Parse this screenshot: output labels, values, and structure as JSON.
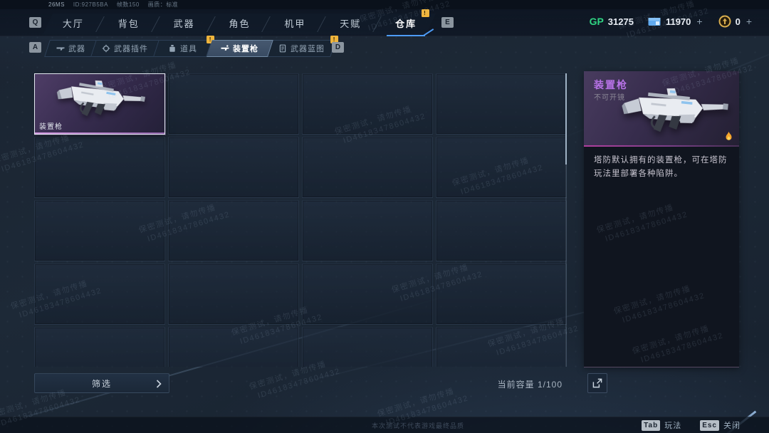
{
  "status_bar": {
    "ping": "26MS",
    "session_id": "ID:927B5BA",
    "fps": "帧数150",
    "quality": "画质：标准"
  },
  "top_nav": {
    "key_left": "Q",
    "key_right": "E",
    "tabs": [
      {
        "label": "大厅"
      },
      {
        "label": "背包"
      },
      {
        "label": "武器"
      },
      {
        "label": "角色"
      },
      {
        "label": "机甲"
      },
      {
        "label": "天赋"
      },
      {
        "label": "仓库",
        "badge": "!",
        "active": true
      }
    ]
  },
  "currencies": [
    {
      "name": "GP",
      "label": "GP",
      "value": "31275",
      "color": "#2fd483"
    },
    {
      "name": "credits",
      "value": "11970",
      "plus": "+"
    },
    {
      "name": "gold",
      "value": "0",
      "plus": "+"
    }
  ],
  "sub_nav": {
    "key_left": "A",
    "key_right": "D",
    "tabs": [
      {
        "label": "武器",
        "icon": "rifle-icon"
      },
      {
        "label": "武器插件",
        "icon": "attachment-icon"
      },
      {
        "label": "道具",
        "icon": "item-icon",
        "badge": "!"
      },
      {
        "label": "装置枪",
        "icon": "device-gun-icon",
        "active": true
      },
      {
        "label": "武器蓝图",
        "icon": "blueprint-icon",
        "badge": "!"
      }
    ]
  },
  "inventory": {
    "rows": 5,
    "cols": 4,
    "filter_label": "筛选",
    "capacity_label": "当前容量",
    "capacity_value": "1/100",
    "items": [
      {
        "slot": 0,
        "name": "装置枪",
        "selected": true
      }
    ]
  },
  "detail_panel": {
    "title": "装置枪",
    "subtitle": "不可开镜",
    "description": "塔防默认拥有的装置枪，可在塔防玩法里部署各种陷阱。"
  },
  "footer": {
    "disclaimer": "本次测试不代表游戏最终品质",
    "hints": [
      {
        "key": "Tab",
        "label": "玩法"
      },
      {
        "key": "Esc",
        "label": "关闭"
      }
    ]
  },
  "watermark": {
    "line1": "保密测试，请勿传播",
    "line2": "ID46183478604432"
  },
  "colors": {
    "accent_blue": "#4d9bf5",
    "gp_green": "#2fd483",
    "badge_yellow": "#f0b53c",
    "magenta": "#b13f9e",
    "rarity_purple": "#b873e8"
  }
}
